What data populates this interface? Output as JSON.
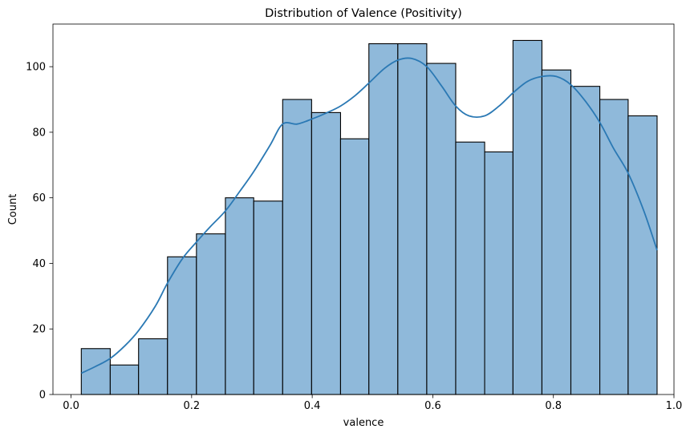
{
  "chart_data": {
    "type": "bar",
    "title": "Distribution of Valence (Positivity)",
    "xlabel": "valence",
    "ylabel": "Count",
    "xlim": [
      -0.03,
      1.0
    ],
    "ylim": [
      0,
      113
    ],
    "xticks": [
      0.0,
      0.2,
      0.4,
      0.6,
      0.8,
      1.0
    ],
    "xtick_labels": [
      "0.0",
      "0.2",
      "0.4",
      "0.6",
      "0.8",
      "1.0"
    ],
    "yticks": [
      0,
      20,
      40,
      60,
      80,
      100
    ],
    "ytick_labels": [
      "0",
      "20",
      "40",
      "60",
      "80",
      "100"
    ],
    "grid": false,
    "bin_edges": [
      0.017,
      0.065,
      0.112,
      0.16,
      0.208,
      0.256,
      0.303,
      0.351,
      0.399,
      0.447,
      0.494,
      0.542,
      0.59,
      0.638,
      0.686,
      0.733,
      0.781,
      0.829,
      0.877,
      0.924,
      0.972
    ],
    "counts": [
      14,
      9,
      17,
      42,
      49,
      60,
      59,
      90,
      86,
      78,
      107,
      107,
      101,
      77,
      74,
      108,
      99,
      94,
      90,
      85
    ],
    "bar_color": "#8fb9da",
    "edge_color": "#000000",
    "kde": {
      "color": "#2b79b4",
      "x": [
        0.017,
        0.04,
        0.065,
        0.09,
        0.112,
        0.14,
        0.16,
        0.185,
        0.208,
        0.23,
        0.256,
        0.28,
        0.303,
        0.33,
        0.351,
        0.375,
        0.399,
        0.425,
        0.447,
        0.47,
        0.494,
        0.52,
        0.542,
        0.565,
        0.59,
        0.615,
        0.638,
        0.66,
        0.686,
        0.71,
        0.733,
        0.757,
        0.781,
        0.805,
        0.829,
        0.853,
        0.877,
        0.9,
        0.924,
        0.95,
        0.972
      ],
      "y": [
        6.5,
        8.5,
        11,
        15,
        19.5,
        27,
        34,
        41.5,
        46.5,
        51,
        56,
        62,
        68,
        76,
        82.5,
        82.5,
        84,
        86,
        88,
        91,
        95,
        99.5,
        102,
        102.5,
        100,
        94,
        88,
        85,
        85,
        88,
        92,
        95.5,
        97,
        97,
        94.5,
        89.5,
        83,
        75,
        67.5,
        56,
        44
      ]
    }
  }
}
